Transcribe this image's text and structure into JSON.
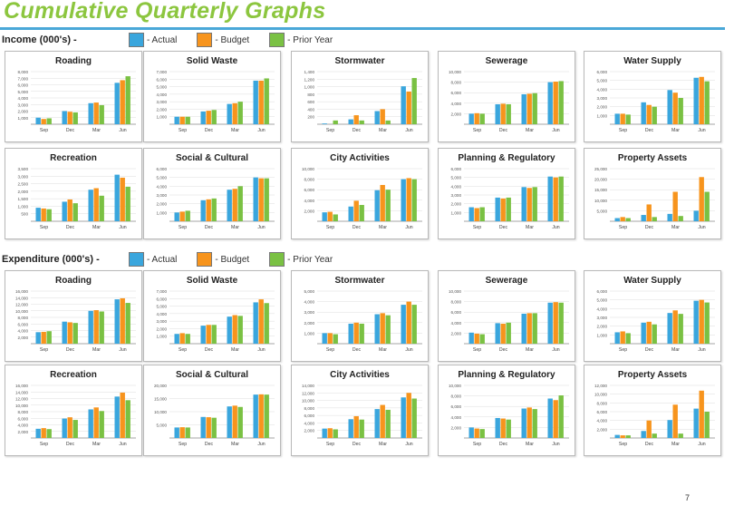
{
  "page": {
    "title": "Cumulative Quarterly Graphs",
    "page_number": "7"
  },
  "legend": {
    "actual": "- Actual",
    "budget": "- Budget",
    "prior_year": "- Prior Year"
  },
  "colors": {
    "actual": "#3aa6dd",
    "budget": "#f7941d",
    "prior_year": "#7ac143"
  },
  "sections": [
    {
      "label": "Income (000's) -"
    },
    {
      "label": "Expenditure (000's) -"
    }
  ],
  "chart_data": [
    {
      "type": "bar",
      "group": "income",
      "title": "Roading",
      "categories": [
        "Sep",
        "Dec",
        "Mar",
        "Jun"
      ],
      "ylim": [
        0,
        8000
      ],
      "yticks": [
        "",
        "1,000",
        "2,000",
        "3,000",
        "4,000",
        "5,000",
        "6,000",
        "7,000",
        "8,000"
      ],
      "series": [
        {
          "name": "- Actual",
          "values": [
            1000,
            2000,
            3200,
            6300
          ]
        },
        {
          "name": "- Budget",
          "values": [
            800,
            1900,
            3300,
            6700
          ]
        },
        {
          "name": "- Prior Year",
          "values": [
            900,
            1800,
            2900,
            7300
          ]
        }
      ]
    },
    {
      "type": "bar",
      "group": "income",
      "title": "Solid Waste",
      "categories": [
        "Sep",
        "Dec",
        "Mar",
        "Jun"
      ],
      "ylim": [
        0,
        7000
      ],
      "yticks": [
        "",
        "1,000",
        "2,000",
        "3,000",
        "4,000",
        "5,000",
        "6,000",
        "7,000"
      ],
      "series": [
        {
          "name": "- Actual",
          "values": [
            1000,
            1700,
            2700,
            5800
          ]
        },
        {
          "name": "- Budget",
          "values": [
            1000,
            1800,
            2800,
            5800
          ]
        },
        {
          "name": "- Prior Year",
          "values": [
            1000,
            1900,
            3000,
            6100
          ]
        }
      ]
    },
    {
      "type": "bar",
      "group": "income",
      "title": "Stormwater",
      "categories": [
        "Sep",
        "Dec",
        "Mar",
        "Jun"
      ],
      "ylim": [
        0,
        1400
      ],
      "yticks": [
        "",
        "200",
        "400",
        "600",
        "800",
        "1,000",
        "1,200",
        "1,400"
      ],
      "series": [
        {
          "name": "- Actual",
          "values": [
            20,
            130,
            350,
            1010
          ]
        },
        {
          "name": "- Budget",
          "values": [
            0,
            240,
            400,
            870
          ]
        },
        {
          "name": "- Prior Year",
          "values": [
            100,
            100,
            100,
            1230
          ]
        }
      ]
    },
    {
      "type": "bar",
      "group": "income",
      "title": "Sewerage",
      "categories": [
        "Sep",
        "Dec",
        "Mar",
        "Jun"
      ],
      "ylim": [
        0,
        10000
      ],
      "yticks": [
        "",
        "2,000",
        "4,000",
        "6,000",
        "8,000",
        "10,000"
      ],
      "series": [
        {
          "name": "- Actual",
          "values": [
            2000,
            3800,
            5700,
            8000
          ]
        },
        {
          "name": "- Budget",
          "values": [
            2100,
            3900,
            5800,
            8100
          ]
        },
        {
          "name": "- Prior Year",
          "values": [
            2000,
            3800,
            5900,
            8200
          ]
        }
      ]
    },
    {
      "type": "bar",
      "group": "income",
      "title": "Water Supply",
      "categories": [
        "Sep",
        "Dec",
        "Mar",
        "Jun"
      ],
      "ylim": [
        0,
        6000
      ],
      "yticks": [
        "",
        "1,000",
        "2,000",
        "3,000",
        "4,000",
        "5,000",
        "6,000"
      ],
      "series": [
        {
          "name": "- Actual",
          "values": [
            1200,
            2500,
            3900,
            5300
          ]
        },
        {
          "name": "- Budget",
          "values": [
            1200,
            2200,
            3600,
            5400
          ]
        },
        {
          "name": "- Prior Year",
          "values": [
            1100,
            2000,
            3000,
            4900
          ]
        }
      ]
    },
    {
      "type": "bar",
      "group": "income",
      "title": "Recreation",
      "categories": [
        "Sep",
        "Dec",
        "Mar",
        "Jun"
      ],
      "ylim": [
        0,
        3500
      ],
      "yticks": [
        "",
        "500",
        "1,000",
        "1,500",
        "2,000",
        "2,500",
        "3,000",
        "3,500"
      ],
      "series": [
        {
          "name": "- Actual",
          "values": [
            900,
            1300,
            2100,
            3100
          ]
        },
        {
          "name": "- Budget",
          "values": [
            850,
            1450,
            2200,
            2900
          ]
        },
        {
          "name": "- Prior Year",
          "values": [
            800,
            1200,
            1700,
            2300
          ]
        }
      ]
    },
    {
      "type": "bar",
      "group": "income",
      "title": "Social & Cultural",
      "categories": [
        "Sep",
        "Dec",
        "Mar",
        "Jun"
      ],
      "ylim": [
        0,
        6000
      ],
      "yticks": [
        "",
        "1,000",
        "2,000",
        "3,000",
        "4,000",
        "5,000",
        "6,000"
      ],
      "series": [
        {
          "name": "- Actual",
          "values": [
            1000,
            2400,
            3600,
            5000
          ]
        },
        {
          "name": "- Budget",
          "values": [
            1100,
            2500,
            3700,
            4900
          ]
        },
        {
          "name": "- Prior Year",
          "values": [
            1200,
            2600,
            4000,
            4900
          ]
        }
      ]
    },
    {
      "type": "bar",
      "group": "income",
      "title": "City Activities",
      "categories": [
        "Sep",
        "Dec",
        "Mar",
        "Jun"
      ],
      "ylim": [
        0,
        10000
      ],
      "yticks": [
        "",
        "2,000",
        "4,000",
        "6,000",
        "8,000",
        "10,000"
      ],
      "series": [
        {
          "name": "- Actual",
          "values": [
            1700,
            2800,
            5900,
            8000
          ]
        },
        {
          "name": "- Budget",
          "values": [
            1800,
            3900,
            6900,
            8200
          ]
        },
        {
          "name": "- Prior Year",
          "values": [
            1300,
            3100,
            6000,
            8000
          ]
        }
      ]
    },
    {
      "type": "bar",
      "group": "income",
      "title": "Planning & Regulatory",
      "categories": [
        "Sep",
        "Dec",
        "Mar",
        "Jun"
      ],
      "ylim": [
        0,
        6000
      ],
      "yticks": [
        "",
        "1,000",
        "2,000",
        "3,000",
        "4,000",
        "5,000",
        "6,000"
      ],
      "series": [
        {
          "name": "- Actual",
          "values": [
            1600,
            2700,
            3900,
            5100
          ]
        },
        {
          "name": "- Budget",
          "values": [
            1500,
            2600,
            3800,
            5000
          ]
        },
        {
          "name": "- Prior Year",
          "values": [
            1600,
            2700,
            3900,
            5100
          ]
        }
      ]
    },
    {
      "type": "bar",
      "group": "income",
      "title": "Property Assets",
      "categories": [
        "Sep",
        "Dec",
        "Mar",
        "Jun"
      ],
      "ylim": [
        0,
        25000
      ],
      "yticks": [
        "",
        "5,000",
        "10,000",
        "15,000",
        "20,000",
        "25,000"
      ],
      "series": [
        {
          "name": "- Actual",
          "values": [
            1500,
            3000,
            3500,
            5000
          ]
        },
        {
          "name": "- Budget",
          "values": [
            2000,
            8000,
            14000,
            21000
          ]
        },
        {
          "name": "- Prior Year",
          "values": [
            1500,
            2000,
            2500,
            14000
          ]
        }
      ]
    },
    {
      "type": "bar",
      "group": "expenditure",
      "title": "Roading",
      "categories": [
        "Sep",
        "Dec",
        "Mar",
        "Jun"
      ],
      "ylim": [
        0,
        16000
      ],
      "yticks": [
        "",
        "2,000",
        "4,000",
        "6,000",
        "8,000",
        "10,000",
        "12,000",
        "14,000",
        "16,000"
      ],
      "series": [
        {
          "name": "- Actual",
          "values": [
            3500,
            6700,
            10000,
            13500
          ]
        },
        {
          "name": "- Budget",
          "values": [
            3600,
            6500,
            10200,
            13800
          ]
        },
        {
          "name": "- Prior Year",
          "values": [
            3800,
            6300,
            9800,
            12400
          ]
        }
      ]
    },
    {
      "type": "bar",
      "group": "expenditure",
      "title": "Solid Waste",
      "categories": [
        "Sep",
        "Dec",
        "Mar",
        "Jun"
      ],
      "ylim": [
        0,
        7000
      ],
      "yticks": [
        "",
        "1,000",
        "2,000",
        "3,000",
        "4,000",
        "5,000",
        "6,000",
        "7,000"
      ],
      "series": [
        {
          "name": "- Actual",
          "values": [
            1300,
            2400,
            3600,
            5500
          ]
        },
        {
          "name": "- Budget",
          "values": [
            1400,
            2500,
            3800,
            5900
          ]
        },
        {
          "name": "- Prior Year",
          "values": [
            1300,
            2500,
            3700,
            5400
          ]
        }
      ]
    },
    {
      "type": "bar",
      "group": "expenditure",
      "title": "Stormwater",
      "categories": [
        "Sep",
        "Dec",
        "Mar",
        "Jun"
      ],
      "ylim": [
        0,
        5000
      ],
      "yticks": [
        "",
        "1,000",
        "2,000",
        "3,000",
        "4,000",
        "5,000"
      ],
      "series": [
        {
          "name": "- Actual",
          "values": [
            1000,
            1900,
            2800,
            3700
          ]
        },
        {
          "name": "- Budget",
          "values": [
            1000,
            2000,
            2900,
            4000
          ]
        },
        {
          "name": "- Prior Year",
          "values": [
            900,
            1900,
            2700,
            3700
          ]
        }
      ]
    },
    {
      "type": "bar",
      "group": "expenditure",
      "title": "Sewerage",
      "categories": [
        "Sep",
        "Dec",
        "Mar",
        "Jun"
      ],
      "ylim": [
        0,
        10000
      ],
      "yticks": [
        "",
        "2,000",
        "4,000",
        "6,000",
        "8,000",
        "10,000"
      ],
      "series": [
        {
          "name": "- Actual",
          "values": [
            2100,
            3900,
            5700,
            7800
          ]
        },
        {
          "name": "- Budget",
          "values": [
            1900,
            3800,
            5800,
            7900
          ]
        },
        {
          "name": "- Prior Year",
          "values": [
            1800,
            4000,
            5800,
            7800
          ]
        }
      ]
    },
    {
      "type": "bar",
      "group": "expenditure",
      "title": "Water Supply",
      "categories": [
        "Sep",
        "Dec",
        "Mar",
        "Jun"
      ],
      "ylim": [
        0,
        6000
      ],
      "yticks": [
        "",
        "1,000",
        "2,000",
        "3,000",
        "4,000",
        "5,000",
        "6,000"
      ],
      "series": [
        {
          "name": "- Actual",
          "values": [
            1300,
            2400,
            3500,
            4900
          ]
        },
        {
          "name": "- Budget",
          "values": [
            1400,
            2500,
            3800,
            5000
          ]
        },
        {
          "name": "- Prior Year",
          "values": [
            1200,
            2200,
            3400,
            4700
          ]
        }
      ]
    },
    {
      "type": "bar",
      "group": "expenditure",
      "title": "Recreation",
      "categories": [
        "Sep",
        "Dec",
        "Mar",
        "Jun"
      ],
      "ylim": [
        0,
        16000
      ],
      "yticks": [
        "",
        "2,000",
        "4,000",
        "6,000",
        "8,000",
        "10,000",
        "12,000",
        "14,000",
        "16,000"
      ],
      "series": [
        {
          "name": "- Actual",
          "values": [
            2800,
            5900,
            8700,
            12600
          ]
        },
        {
          "name": "- Budget",
          "values": [
            3000,
            6300,
            9300,
            13800
          ]
        },
        {
          "name": "- Prior Year",
          "values": [
            2700,
            5500,
            8200,
            11500
          ]
        }
      ]
    },
    {
      "type": "bar",
      "group": "expenditure",
      "title": "Social & Cultural",
      "categories": [
        "Sep",
        "Dec",
        "Mar",
        "Jun"
      ],
      "ylim": [
        0,
        20000
      ],
      "yticks": [
        "",
        "5,000",
        "10,000",
        "15,000",
        "20,000"
      ],
      "series": [
        {
          "name": "- Actual",
          "values": [
            4000,
            8000,
            12000,
            16500
          ]
        },
        {
          "name": "- Budget",
          "values": [
            4100,
            7900,
            12300,
            16600
          ]
        },
        {
          "name": "- Prior Year",
          "values": [
            4000,
            7700,
            11800,
            16500
          ]
        }
      ]
    },
    {
      "type": "bar",
      "group": "expenditure",
      "title": "City Activities",
      "categories": [
        "Sep",
        "Dec",
        "Mar",
        "Jun"
      ],
      "ylim": [
        0,
        14000
      ],
      "yticks": [
        "",
        "2,000",
        "4,000",
        "6,000",
        "8,000",
        "10,000",
        "12,000",
        "14,000"
      ],
      "series": [
        {
          "name": "- Actual",
          "values": [
            2500,
            5000,
            7700,
            10800
          ]
        },
        {
          "name": "- Budget",
          "values": [
            2600,
            5800,
            8800,
            12000
          ]
        },
        {
          "name": "- Prior Year",
          "values": [
            2300,
            4900,
            7500,
            10500
          ]
        }
      ]
    },
    {
      "type": "bar",
      "group": "expenditure",
      "title": "Planning & Regulatory",
      "categories": [
        "Sep",
        "Dec",
        "Mar",
        "Jun"
      ],
      "ylim": [
        0,
        10000
      ],
      "yticks": [
        "",
        "2,000",
        "4,000",
        "6,000",
        "8,000",
        "10,000"
      ],
      "series": [
        {
          "name": "- Actual",
          "values": [
            2000,
            3800,
            5600,
            7500
          ]
        },
        {
          "name": "- Budget",
          "values": [
            1800,
            3700,
            5800,
            7200
          ]
        },
        {
          "name": "- Prior Year",
          "values": [
            1700,
            3500,
            5500,
            8100
          ]
        }
      ]
    },
    {
      "type": "bar",
      "group": "expenditure",
      "title": "Property Assets",
      "categories": [
        "Sep",
        "Dec",
        "Mar",
        "Jun"
      ],
      "ylim": [
        0,
        12000
      ],
      "yticks": [
        "",
        "2,000",
        "4,000",
        "6,000",
        "8,000",
        "10,000",
        "12,000"
      ],
      "series": [
        {
          "name": "- Actual",
          "values": [
            700,
            1600,
            4100,
            6700
          ]
        },
        {
          "name": "- Budget",
          "values": [
            600,
            4000,
            7600,
            10800
          ]
        },
        {
          "name": "- Prior Year",
          "values": [
            600,
            1000,
            1000,
            6000
          ]
        }
      ]
    }
  ]
}
